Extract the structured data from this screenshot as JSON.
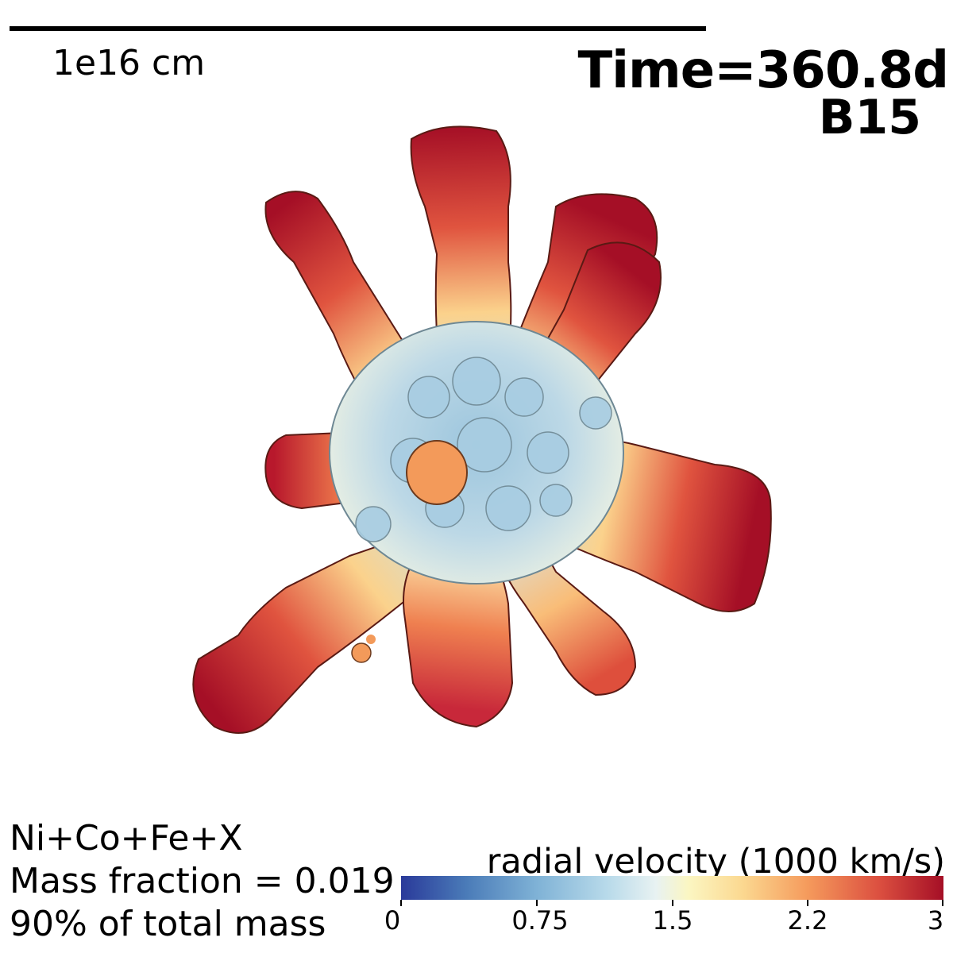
{
  "scale": {
    "label": "1e16 cm"
  },
  "header": {
    "time": "Time=360.8d",
    "model": "B15"
  },
  "info": {
    "line1": "Ni+Co+Fe+X",
    "line2": "Mass fraction = 0.019",
    "line3": "90% of total mass"
  },
  "colorbar": {
    "title": "radial velocity (1000 km/s)",
    "ticks": [
      "0",
      "0.75",
      "1.5",
      "2.2",
      "3"
    ],
    "range": [
      0,
      3
    ],
    "colors": {
      "low": "#2a3a9a",
      "mid": "#f2f4ec",
      "high": "#a50f26"
    }
  }
}
